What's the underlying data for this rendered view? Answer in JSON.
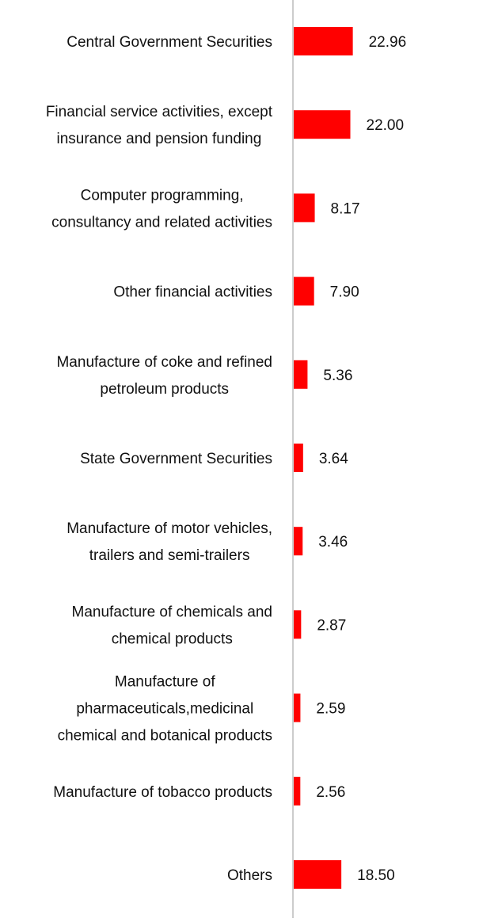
{
  "chart_data": {
    "type": "bar",
    "orientation": "horizontal",
    "bar_color": "#ff0000",
    "axis_color": "#cccccc",
    "label_color": "#111111",
    "categories": [
      [
        "Central Government Securities"
      ],
      [
        "Financial service activities, except",
        "insurance and pension funding"
      ],
      [
        "Computer programming,",
        "consultancy and related activities"
      ],
      [
        "Other financial activities"
      ],
      [
        "Manufacture of coke and refined",
        "petroleum products"
      ],
      [
        "State Government Securities"
      ],
      [
        "Manufacture of motor vehicles,",
        "trailers and semi-trailers"
      ],
      [
        "Manufacture of chemicals and",
        "chemical products"
      ],
      [
        "Manufacture of",
        "pharmaceuticals,medicinal",
        "chemical and botanical products"
      ],
      [
        "Manufacture of tobacco products"
      ],
      [
        "Others"
      ]
    ],
    "values": [
      22.96,
      22.0,
      8.17,
      7.9,
      5.36,
      3.64,
      3.46,
      2.87,
      2.59,
      2.56,
      18.5
    ],
    "value_labels": [
      "22.96",
      "22.00",
      "8.17",
      "7.90",
      "5.36",
      "3.64",
      "3.46",
      "2.87",
      "2.59",
      "2.56",
      "18.50"
    ],
    "grid": false,
    "legend": "none"
  }
}
